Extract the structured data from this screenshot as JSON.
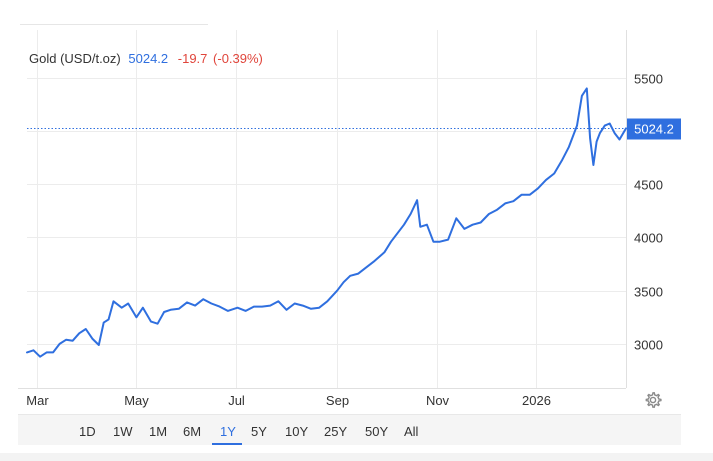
{
  "header": {
    "instrument": "Gold (USD/t.oz)",
    "price": "5024.2",
    "change": "-19.7",
    "change_pct": "(-0.39%)"
  },
  "chart_data": {
    "type": "line",
    "title": "Gold (USD/t.oz)",
    "xlabel": "",
    "ylabel": "",
    "ylim": [
      2500,
      6000
    ],
    "yticks": [
      3000,
      3500,
      4000,
      4500,
      5000,
      5500
    ],
    "ytick_labels": [
      "3000",
      "3500",
      "4000",
      "4500",
      "",
      "5500"
    ],
    "current_value": 5024.2,
    "current_label": "5024.2",
    "xlim": [
      "2025-02-23",
      "2026-02-25"
    ],
    "xticks": [
      "2025-03-01",
      "2025-05-01",
      "2025-07-01",
      "2025-09-01",
      "2025-11-01",
      "2026-01-01"
    ],
    "xtick_labels": [
      "Mar",
      "May",
      "Jul",
      "Sep",
      "Nov",
      "2026"
    ],
    "grid": true,
    "series": [
      {
        "color": "#2f6fdf",
        "x": [
          "2025-02-23",
          "2025-02-27",
          "2025-03-03",
          "2025-03-07",
          "2025-03-11",
          "2025-03-15",
          "2025-03-19",
          "2025-03-23",
          "2025-03-27",
          "2025-03-31",
          "2025-04-04",
          "2025-04-08",
          "2025-04-11",
          "2025-04-14",
          "2025-04-17",
          "2025-04-22",
          "2025-04-26",
          "2025-05-01",
          "2025-05-05",
          "2025-05-10",
          "2025-05-14",
          "2025-05-18",
          "2025-05-22",
          "2025-05-27",
          "2025-06-01",
          "2025-06-06",
          "2025-06-11",
          "2025-06-16",
          "2025-06-21",
          "2025-06-26",
          "2025-07-02",
          "2025-07-07",
          "2025-07-12",
          "2025-07-17",
          "2025-07-22",
          "2025-07-27",
          "2025-08-01",
          "2025-08-06",
          "2025-08-11",
          "2025-08-16",
          "2025-08-21",
          "2025-08-26",
          "2025-09-01",
          "2025-09-05",
          "2025-09-09",
          "2025-09-14",
          "2025-09-19",
          "2025-09-24",
          "2025-09-30",
          "2025-10-04",
          "2025-10-08",
          "2025-10-12",
          "2025-10-16",
          "2025-10-20",
          "2025-10-22",
          "2025-10-26",
          "2025-10-30",
          "2025-11-03",
          "2025-11-08",
          "2025-11-13",
          "2025-11-18",
          "2025-11-23",
          "2025-11-28",
          "2025-12-03",
          "2025-12-08",
          "2025-12-13",
          "2025-12-18",
          "2025-12-23",
          "2025-12-28",
          "2026-01-02",
          "2026-01-07",
          "2026-01-12",
          "2026-01-17",
          "2026-01-21",
          "2026-01-26",
          "2026-01-29",
          "2026-02-01",
          "2026-02-03",
          "2026-02-05",
          "2026-02-07",
          "2026-02-09",
          "2026-02-12",
          "2026-02-15",
          "2026-02-18",
          "2026-02-21",
          "2026-02-25"
        ],
        "y": [
          2920,
          2940,
          2880,
          2920,
          2920,
          3000,
          3040,
          3030,
          3100,
          3140,
          3050,
          2990,
          3200,
          3230,
          3400,
          3340,
          3380,
          3250,
          3340,
          3210,
          3190,
          3300,
          3320,
          3330,
          3390,
          3360,
          3420,
          3380,
          3350,
          3310,
          3340,
          3310,
          3350,
          3350,
          3360,
          3400,
          3320,
          3380,
          3360,
          3330,
          3340,
          3400,
          3500,
          3580,
          3640,
          3660,
          3720,
          3780,
          3860,
          3960,
          4040,
          4120,
          4220,
          4350,
          4100,
          4120,
          3960,
          3960,
          3980,
          4180,
          4080,
          4120,
          4140,
          4220,
          4260,
          4320,
          4340,
          4400,
          4400,
          4460,
          4540,
          4600,
          4730,
          4850,
          5050,
          5330,
          5400,
          4930,
          4680,
          4900,
          4980,
          5050,
          5070,
          4980,
          4920,
          5024
        ]
      }
    ]
  },
  "range_buttons": [
    "1D",
    "1W",
    "1M",
    "6M",
    "1Y",
    "5Y",
    "10Y",
    "25Y",
    "50Y",
    "All"
  ],
  "active_range": "1Y",
  "settings_icon": "gear-icon",
  "colors": {
    "line": "#2f6fdf",
    "up_price": "#2f6fdf",
    "change_negative": "#e0453b",
    "tag_bg": "#2f6fdf"
  }
}
